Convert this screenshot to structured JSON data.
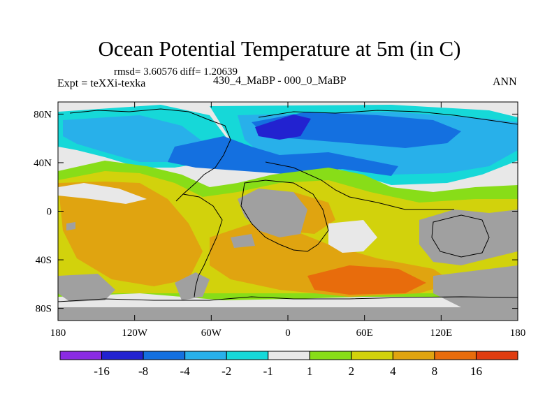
{
  "title": "Ocean Potential Temperature at 5m (in C)",
  "stats": "rmsd= 3.60576 diff= 1.20639",
  "experiment": "Expt = teXXi-texka",
  "period": "430_4_MaBP - 000_0_MaBP",
  "season": "ANN",
  "map": {
    "lon_range": [
      -180,
      180
    ],
    "lat_range": [
      -90,
      90
    ],
    "missing_color": "#a0a0a0",
    "x_ticks": [
      {
        "lon": -180,
        "label": "180"
      },
      {
        "lon": -120,
        "label": "120W"
      },
      {
        "lon": -60,
        "label": "60W"
      },
      {
        "lon": 0,
        "label": "0"
      },
      {
        "lon": 60,
        "label": "60E"
      },
      {
        "lon": 120,
        "label": "120E"
      },
      {
        "lon": 180,
        "label": "180"
      }
    ],
    "y_ticks": [
      {
        "lat": 80,
        "label": "80N"
      },
      {
        "lat": 40,
        "label": "40N"
      },
      {
        "lat": 0,
        "label": "0"
      },
      {
        "lat": -40,
        "label": "40S"
      },
      {
        "lat": -80,
        "label": "80S"
      }
    ]
  },
  "colorbar": {
    "colors": [
      "#8a2be2",
      "#2222d0",
      "#1470e0",
      "#28b0ea",
      "#16d8d8",
      "#e8e8e8",
      "#88dd18",
      "#d2d20c",
      "#e0a410",
      "#e86c0c",
      "#e03c10"
    ],
    "labels": [
      "-16",
      "-8",
      "-4",
      "-2",
      "-1",
      "1",
      "2",
      "4",
      "8",
      "16"
    ]
  }
}
